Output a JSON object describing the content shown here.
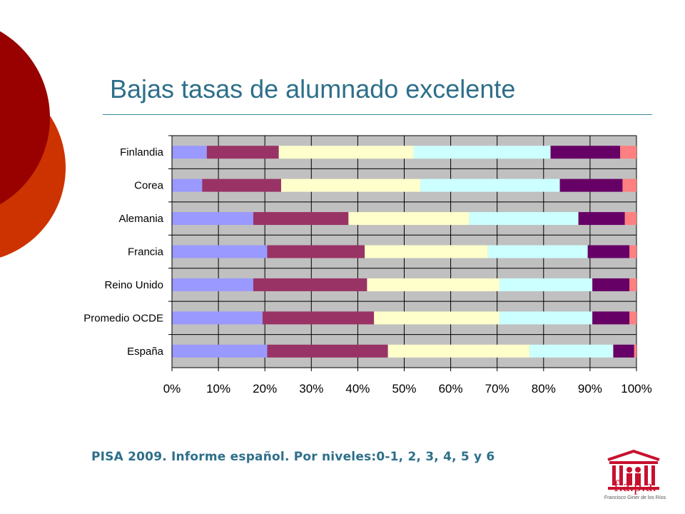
{
  "title": "Bajas tasas de alumnado excelente",
  "caption": "PISA 2009. Informe español. Por niveles:0-1, 2, 3, 4, 5 y 6",
  "logo": {
    "text": "f.a.p.a.",
    "subtitle": "Francisco Giner de los Ríos",
    "icon": "building-people-icon"
  },
  "colors": {
    "title": "#2e6f8a",
    "plot_background": "#c0c0c0",
    "deco_dark_red": "#990000",
    "deco_orange": "#cc3300",
    "levels": [
      "#9999ff",
      "#993366",
      "#ffffcc",
      "#ccffff",
      "#660066",
      "#ff8080"
    ]
  },
  "chart_data": {
    "type": "bar",
    "orientation": "horizontal",
    "stacked": true,
    "percent": true,
    "categories": [
      "Finlandia",
      "Corea",
      "Alemania",
      "Francia",
      "Reino Unido",
      "Promedio OCDE",
      "España"
    ],
    "series": [
      {
        "values": [
          7.5,
          6.5,
          17.5,
          20.5,
          17.5,
          19.5,
          20.5
        ]
      },
      {
        "values": [
          15.5,
          17,
          20.5,
          21,
          24.5,
          24,
          26
        ]
      },
      {
        "values": [
          29,
          30,
          26,
          26.5,
          28.5,
          27,
          30.5
        ]
      },
      {
        "values": [
          29.5,
          30,
          23.5,
          21.5,
          20,
          20,
          18
        ]
      },
      {
        "values": [
          15,
          13.5,
          10,
          9,
          8,
          8,
          4.5
        ]
      },
      {
        "values": [
          3.5,
          3,
          2.5,
          1.5,
          1.5,
          1.5,
          0.5
        ]
      }
    ],
    "xticks": [
      "0%",
      "10%",
      "20%",
      "30%",
      "40%",
      "50%",
      "60%",
      "70%",
      "80%",
      "90%",
      "100%"
    ],
    "xlim": [
      0,
      100
    ],
    "grid": true,
    "legend": "none"
  }
}
